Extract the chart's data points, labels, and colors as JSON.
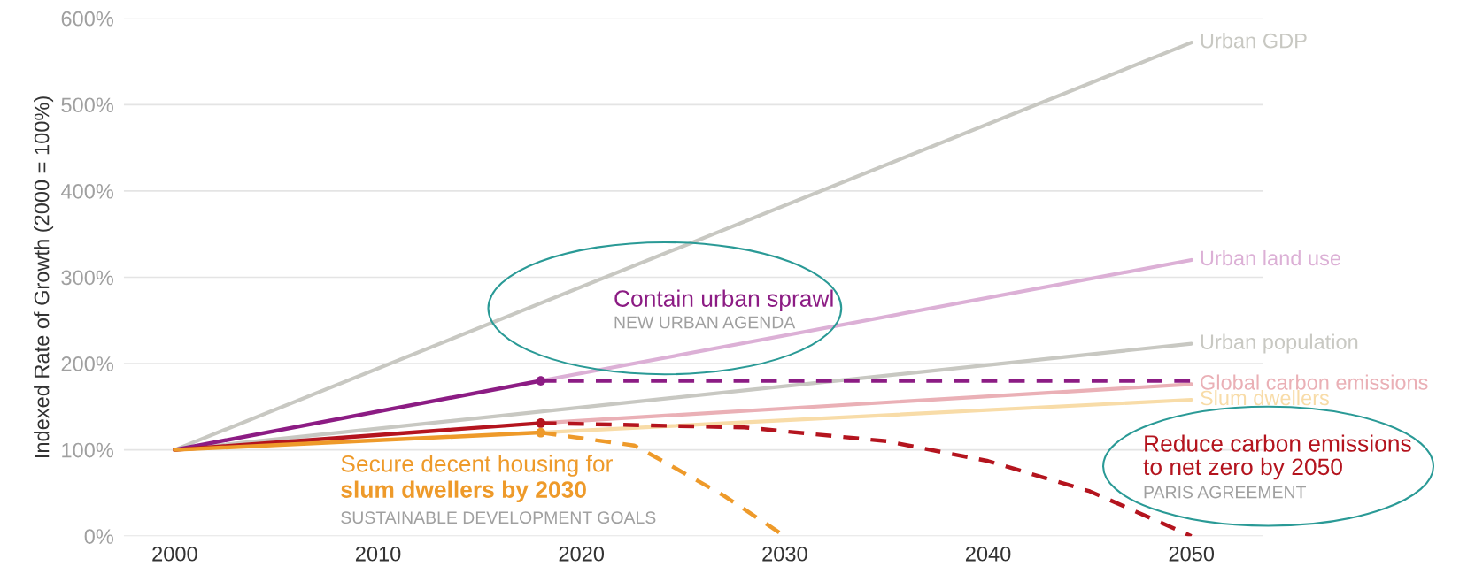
{
  "chart_data": {
    "type": "line",
    "ylabel": "Indexed Rate of Growth (2000 = 100%)",
    "xlim": [
      1997.5,
      2053.5
    ],
    "xticks": [
      2000,
      2010,
      2020,
      2030,
      2040,
      2050
    ],
    "ylim": [
      0,
      600
    ],
    "yticks": [
      {
        "value": 0,
        "label": "0%"
      },
      {
        "value": 100,
        "label": "100%"
      },
      {
        "value": 200,
        "label": "200%"
      },
      {
        "value": 300,
        "label": "300%"
      },
      {
        "value": 400,
        "label": "400%"
      },
      {
        "value": 500,
        "label": "500%"
      },
      {
        "value": 600,
        "label": "600%"
      }
    ],
    "grid": "y",
    "legend": false,
    "series": [
      {
        "name": "Urban GDP",
        "color": "#c8c8c2",
        "x": [
          2000,
          2050
        ],
        "values": [
          100,
          572
        ]
      },
      {
        "name": "Urban land use",
        "color": "#dcb0d6",
        "x": [
          2018,
          2050
        ],
        "values": [
          180,
          320
        ]
      },
      {
        "name": "Urban population",
        "color": "#c8c8c2",
        "x": [
          2000,
          2050
        ],
        "values": [
          100,
          223
        ]
      },
      {
        "name": "Global carbon emissions",
        "color": "#eab0b6",
        "x": [
          2018,
          2050
        ],
        "values": [
          131,
          176
        ]
      },
      {
        "name": "Slum dwellers",
        "color": "#f8dca8",
        "x": [
          2018,
          2050
        ],
        "values": [
          120,
          158
        ]
      },
      {
        "color": "#8c1c84",
        "x": [
          2000,
          2018
        ],
        "values": [
          100,
          180
        ]
      },
      {
        "color": "#b4141e",
        "x": [
          2000,
          2018
        ],
        "values": [
          100,
          131
        ]
      },
      {
        "color": "#ee9a2a",
        "x": [
          2000,
          2018
        ],
        "values": [
          100,
          120
        ]
      },
      {
        "color": "#8c1c84",
        "x": [
          2018,
          2050
        ],
        "values": [
          180,
          180
        ],
        "line_style": "dashed"
      },
      {
        "color": "#b4141e",
        "x": [
          2018,
          2028,
          2035,
          2040,
          2045,
          2050
        ],
        "values": [
          131,
          126,
          110,
          87,
          52,
          0
        ],
        "line_style": "dashed"
      },
      {
        "color": "#ee9a2a",
        "x": [
          2018,
          2022.6,
          2024,
          2027,
          2030
        ],
        "values": [
          120,
          105,
          87,
          47,
          0
        ],
        "line_style": "dashed"
      },
      {
        "type": "scatter",
        "marker": "circle",
        "x": [
          2018,
          2018,
          2018
        ],
        "values": [
          180,
          131,
          120
        ],
        "colors": [
          "#8c1c84",
          "#b4141e",
          "#ee9a2a"
        ]
      }
    ],
    "annotations": [
      "Contain urban sprawl",
      "NEW URBAN AGENDA",
      "Secure decent housing for",
      "slum dwellers by 2030",
      "SUSTAINABLE DEVELOPMENT GOALS",
      "Reduce carbon emissions",
      "to net zero by 2050",
      "PARIS AGREEMENT"
    ]
  }
}
